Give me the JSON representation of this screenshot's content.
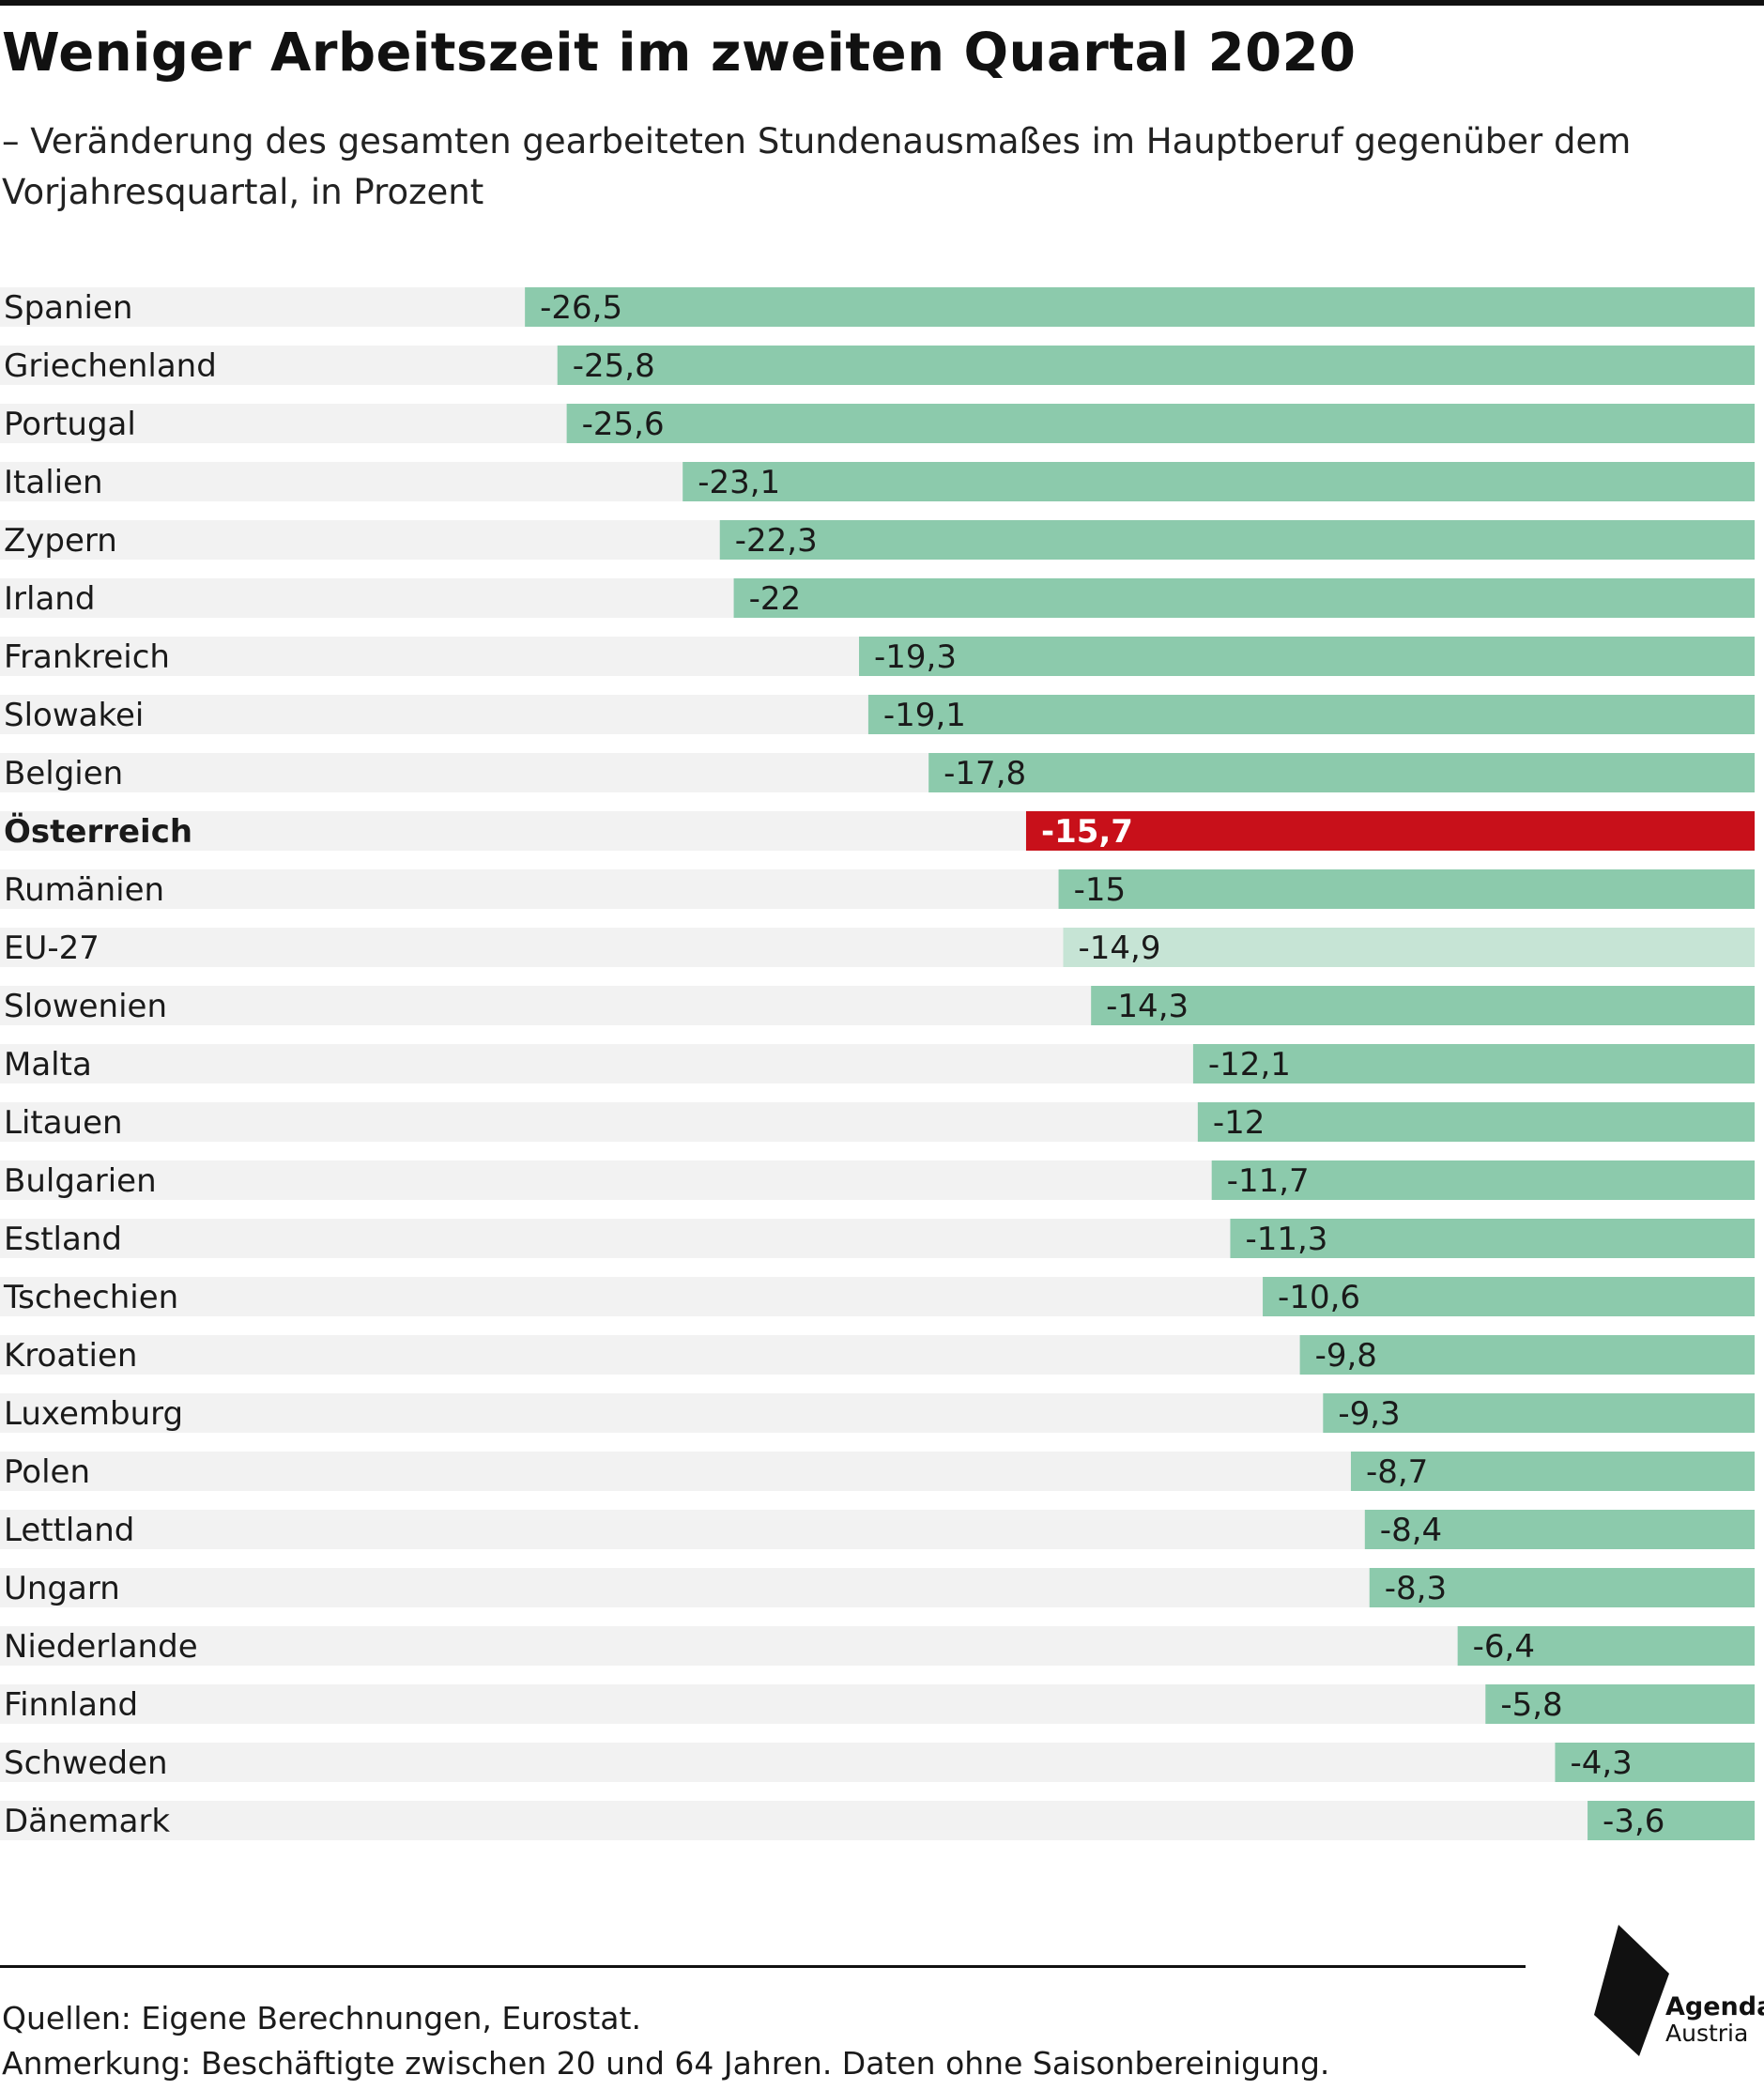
{
  "title": "Weniger Arbeitszeit im zweiten Quartal 2020",
  "subtitle": "– Veränderung des gesamten gearbeiteten Stundenausmaßes im Hauptberuf gegenüber dem Vorjahresquartal, in Prozent",
  "chart_data": {
    "type": "bar",
    "orientation": "horizontal",
    "title": "Weniger Arbeitszeit im zweiten Quartal 2020",
    "subtitle": "– Veränderung des gesamten gearbeiteten Stundenausmaßes im Hauptberuf gegenüber dem Vorjahresquartal, in Prozent",
    "xlim": [
      -31.5,
      0
    ],
    "grid": false,
    "legend": "none",
    "categories": [
      "Spanien",
      "Griechenland",
      "Portugal",
      "Italien",
      "Zypern",
      "Irland",
      "Frankreich",
      "Slowakei",
      "Belgien",
      "Österreich",
      "Rumänien",
      "EU-27",
      "Slowenien",
      "Malta",
      "Litauen",
      "Bulgarien",
      "Estland",
      "Tschechien",
      "Kroatien",
      "Luxemburg",
      "Polen",
      "Lettland",
      "Ungarn",
      "Niederlande",
      "Finnland",
      "Schweden",
      "Dänemark"
    ],
    "values": [
      -26.5,
      -25.8,
      -25.6,
      -23.1,
      -22.3,
      -22,
      -19.3,
      -19.1,
      -17.8,
      -15.7,
      -15,
      -14.9,
      -14.3,
      -12.1,
      -12,
      -11.7,
      -11.3,
      -10.6,
      -9.8,
      -9.3,
      -8.7,
      -8.4,
      -8.3,
      -6.4,
      -5.8,
      -4.3,
      -3.6
    ],
    "value_labels": [
      "-26,5",
      "-25,8",
      "-25,6",
      "-23,1",
      "-22,3",
      "-22",
      "-19,3",
      "-19,1",
      "-17,8",
      "-15,7",
      "-15",
      "-14,9",
      "-14,3",
      "-12,1",
      "-12",
      "-11,7",
      "-11,3",
      "-10,6",
      "-9,8",
      "-9,3",
      "-8,7",
      "-8,4",
      "-8,3",
      "-6,4",
      "-5,8",
      "-4,3",
      "-3,6"
    ],
    "highlight": "Österreich",
    "aggregate": "EU-27",
    "colors": {
      "bar": "#8ccaac",
      "highlight": "#c8101a",
      "aggregate": "#c6e4d5",
      "row_background": "#f2f2f2"
    }
  },
  "footer": {
    "source": "Quellen: Eigene Berechnungen, Eurostat.",
    "note": "Anmerkung: Beschäftigte zwischen 20 und 64 Jahren. Daten ohne Saisonbereinigung."
  },
  "logo": {
    "line1": "Agenda",
    "line2": "Austria"
  }
}
